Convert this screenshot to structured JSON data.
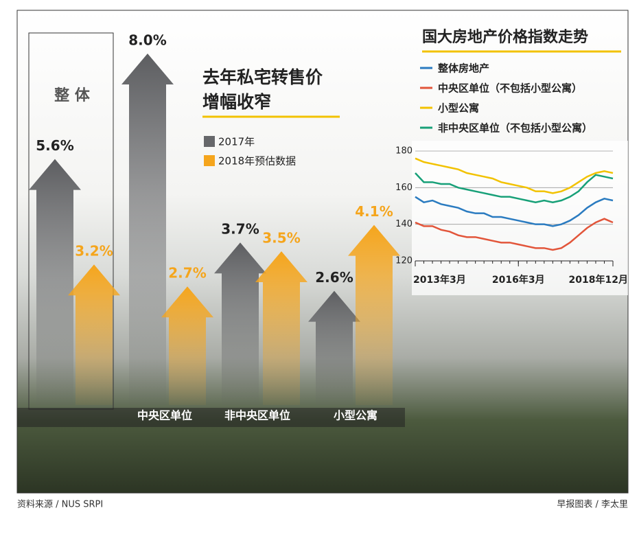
{
  "chart_data": [
    {
      "type": "bar",
      "title": [
        "去年私宅转售价",
        "增幅收窄"
      ],
      "categories": [
        "整 体",
        "中央区单位",
        "非中央区单位",
        "小型公寓"
      ],
      "series": [
        {
          "name": "2017年",
          "color": "#66676a",
          "values": [
            5.6,
            8.0,
            3.7,
            2.6
          ],
          "value_labels": [
            "5.6%",
            "8.0%",
            "3.7%",
            "2.6%"
          ]
        },
        {
          "name": "2018年预估数据",
          "color": "#f5a51c",
          "values": [
            3.2,
            2.7,
            3.5,
            4.1
          ],
          "value_labels": [
            "3.2%",
            "2.7%",
            "3.5%",
            "4.1%"
          ]
        }
      ]
    },
    {
      "type": "line",
      "title": "国大房地产价格指数走势",
      "x": [
        "2013-03",
        "2013-06",
        "2013-09",
        "2013-12",
        "2014-03",
        "2014-06",
        "2014-09",
        "2014-12",
        "2015-03",
        "2015-06",
        "2015-09",
        "2015-12",
        "2016-03",
        "2016-06",
        "2016-09",
        "2016-12",
        "2017-03",
        "2017-06",
        "2017-09",
        "2017-12",
        "2018-03",
        "2018-06",
        "2018-09",
        "2018-12"
      ],
      "xticks": [
        {
          "value": "2013-03",
          "label": "2013年3月"
        },
        {
          "value": "2016-03",
          "label": "2016年3月"
        },
        {
          "value": "2018-12",
          "label": "2018年12月"
        }
      ],
      "ylim": [
        120,
        180
      ],
      "yticks": [
        120,
        140,
        160,
        180
      ],
      "grid": true,
      "series": [
        {
          "name": "整体房地产",
          "color": "#2a7bc0",
          "values": [
            155,
            152,
            153,
            151,
            150,
            149,
            147,
            146,
            146,
            144,
            144,
            143,
            142,
            141,
            140,
            140,
            139,
            140,
            142,
            145,
            149,
            152,
            154,
            153
          ]
        },
        {
          "name": "中央区单位（不包括小型公寓）",
          "color": "#e2553a",
          "values": [
            141,
            139,
            139,
            137,
            136,
            134,
            133,
            133,
            132,
            131,
            130,
            130,
            129,
            128,
            127,
            127,
            126,
            127,
            130,
            134,
            138,
            141,
            143,
            141
          ]
        },
        {
          "name": "小型公寓",
          "color": "#f2c200",
          "values": [
            176,
            174,
            173,
            172,
            171,
            170,
            168,
            167,
            166,
            165,
            163,
            162,
            161,
            160,
            158,
            158,
            157,
            158,
            160,
            163,
            166,
            168,
            169,
            168
          ]
        },
        {
          "name": "非中央区单位（不包括小型公寓）",
          "color": "#17a078",
          "values": [
            168,
            163,
            163,
            162,
            162,
            160,
            159,
            158,
            157,
            156,
            155,
            155,
            154,
            153,
            152,
            153,
            152,
            153,
            155,
            158,
            163,
            167,
            166,
            165
          ]
        }
      ]
    }
  ],
  "footer": {
    "source": "资料来源 / NUS SRPI",
    "credit": "早报图表 / 李太里"
  }
}
